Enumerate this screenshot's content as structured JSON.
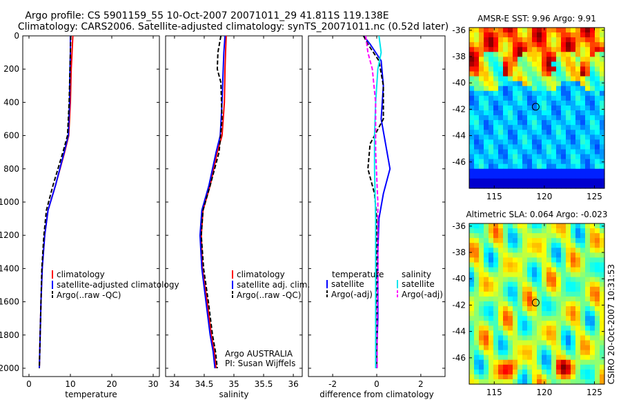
{
  "figure": {
    "title_line1": "Argo profile: CS 5901159_55 10-Oct-2007 20071011_29 41.811S 119.138E",
    "title_line2": "Climatology: CARS2006. Satellite-adjusted climatology: synTS_20071011.nc (0.52d later)",
    "credit": "CSIRO 20-Oct-2007 10:31:53"
  },
  "colors": {
    "climatology": "#ff0000",
    "satellite": "#0000ff",
    "argo": "#000000",
    "sal_satellite": "#00e5ee",
    "sal_argo": "#ff00ff"
  },
  "chart_data": [
    {
      "type": "line",
      "id": "temp",
      "xlabel": "temperature",
      "xlim": [
        -1.5,
        31.5
      ],
      "xticks": [
        0,
        10,
        20,
        30
      ],
      "xtick_labels": [
        "0",
        "10",
        "20",
        "30"
      ],
      "ylim": [
        0,
        2050
      ],
      "yticks": [
        0,
        200,
        400,
        600,
        800,
        1000,
        1200,
        1400,
        1600,
        1800,
        2000
      ],
      "ytick_labels": [
        "0",
        "200",
        "400",
        "600",
        "800",
        "1000",
        "1200",
        "1400",
        "1600",
        "1800",
        "2000"
      ],
      "y_reversed": true,
      "series": [
        {
          "name": "climatology",
          "color": "#ff0000",
          "dash": "solid",
          "x": [
            10.6,
            10.4,
            10.2,
            10,
            9.6,
            8.6,
            6.4,
            4.6,
            3.8,
            3.2,
            2.9,
            2.7,
            2.6,
            2.5
          ],
          "y": [
            0,
            100,
            200,
            400,
            600,
            700,
            900,
            1050,
            1200,
            1400,
            1600,
            1800,
            1900,
            2000
          ]
        },
        {
          "name": "satellite-adjusted climatology",
          "color": "#0000ff",
          "dash": "solid",
          "x": [
            10.0,
            10.0,
            9.9,
            9.8,
            9.5,
            8.5,
            6.4,
            4.6,
            3.8,
            3.2,
            2.9,
            2.7,
            2.6,
            2.5
          ],
          "y": [
            0,
            100,
            200,
            400,
            600,
            700,
            900,
            1050,
            1200,
            1400,
            1600,
            1800,
            1900,
            2000
          ]
        },
        {
          "name": "Argo(..raw -QC)",
          "color": "#000000",
          "dash": "dash",
          "x": [
            10.1,
            10.0,
            9.9,
            9.7,
            9.3,
            8.2,
            5.8,
            4.2,
            3.6,
            3.1,
            2.9,
            2.7,
            2.6,
            2.5
          ],
          "y": [
            0,
            100,
            200,
            400,
            600,
            700,
            900,
            1050,
            1200,
            1400,
            1600,
            1800,
            1900,
            2000
          ]
        }
      ],
      "legend": {
        "position": "lower-right",
        "entries": [
          "climatology",
          "satellite-adjusted climatology",
          "Argo(..raw -QC)"
        ]
      }
    },
    {
      "type": "line",
      "id": "sal",
      "xlabel": "salinity",
      "xlim": [
        33.85,
        36.15
      ],
      "xticks": [
        34,
        34.5,
        35,
        35.5,
        36
      ],
      "xtick_labels": [
        "34",
        "34.5",
        "35",
        "35.5",
        "36"
      ],
      "ylim": [
        0,
        2050
      ],
      "yticks": [
        0,
        200,
        400,
        600,
        800,
        1000,
        1200,
        1400,
        1600,
        1800,
        2000
      ],
      "y_reversed": true,
      "series": [
        {
          "name": "climatology",
          "color": "#ff0000",
          "dash": "solid",
          "x": [
            34.87,
            34.86,
            34.85,
            34.84,
            34.8,
            34.72,
            34.6,
            34.48,
            34.45,
            34.47,
            34.55,
            34.62,
            34.67,
            34.7
          ],
          "y": [
            0,
            100,
            200,
            400,
            600,
            700,
            900,
            1050,
            1200,
            1400,
            1600,
            1800,
            1900,
            2000
          ]
        },
        {
          "name": "satellite adj. clim.",
          "color": "#0000ff",
          "dash": "solid",
          "x": [
            34.85,
            34.83,
            34.82,
            34.8,
            34.77,
            34.7,
            34.58,
            34.46,
            34.43,
            34.46,
            34.53,
            34.6,
            34.65,
            34.68
          ],
          "y": [
            0,
            100,
            200,
            400,
            600,
            700,
            900,
            1050,
            1200,
            1400,
            1600,
            1800,
            1900,
            2000
          ]
        },
        {
          "name": "Argo(..raw -QC)",
          "color": "#000000",
          "dash": "dash",
          "x": [
            34.78,
            34.73,
            34.72,
            34.78,
            34.8,
            34.75,
            34.6,
            34.48,
            34.45,
            34.49,
            34.57,
            34.64,
            34.69,
            34.72
          ],
          "y": [
            0,
            100,
            200,
            280,
            500,
            700,
            900,
            1050,
            1200,
            1400,
            1600,
            1800,
            1900,
            2000
          ]
        }
      ],
      "legend": {
        "position": "lower-right",
        "entries": [
          "climatology",
          "satellite adj. clim.",
          "Argo(..raw -QC)"
        ]
      },
      "annotation": {
        "line1": "Argo AUSTRALIA",
        "line2": "PI: Susan Wijffels"
      }
    },
    {
      "type": "line",
      "id": "diff",
      "xlabel": "difference from climatology",
      "xlim": [
        -3.1,
        3.1
      ],
      "xticks": [
        -2,
        0,
        2
      ],
      "xtick_labels": [
        "-2",
        "0",
        "2"
      ],
      "ylim": [
        0,
        2050
      ],
      "yticks": [
        0,
        200,
        400,
        600,
        800,
        1000,
        1200,
        1400,
        1600,
        1800,
        2000
      ],
      "y_reversed": true,
      "series": [
        {
          "name": "temperature satellite",
          "color": "#0000ff",
          "dash": "solid",
          "x": [
            -0.6,
            -0.3,
            0.2,
            0.3,
            0.2,
            0.4,
            0.6,
            0.3,
            0.1,
            0.05,
            0.05,
            0.05,
            0.0,
            0.0
          ],
          "y": [
            0,
            50,
            150,
            300,
            500,
            650,
            800,
            950,
            1100,
            1300,
            1500,
            1700,
            1900,
            2000
          ]
        },
        {
          "name": "temperature Argo(-adj)",
          "color": "#000000",
          "dash": "dash",
          "x": [
            -0.6,
            -0.4,
            0.1,
            0.3,
            0.3,
            -0.3,
            -0.4,
            -0.1,
            0.0,
            0.0,
            0.0,
            0.0,
            0.0
          ],
          "y": [
            0,
            50,
            150,
            300,
            500,
            650,
            800,
            950,
            1100,
            1300,
            1500,
            1800,
            2000
          ]
        },
        {
          "name": "salinity satellite",
          "color": "#00e5ee",
          "dash": "solid",
          "x": [
            0.1,
            0.2,
            0.05,
            -0.05,
            -0.1,
            -0.1,
            -0.05,
            -0.05,
            -0.05,
            -0.05
          ],
          "y": [
            0,
            100,
            200,
            400,
            600,
            800,
            1100,
            1400,
            1700,
            2000
          ]
        },
        {
          "name": "salinity Argo(-adj)",
          "color": "#ff00ff",
          "dash": "dash",
          "x": [
            -0.5,
            -0.4,
            -0.2,
            -0.05,
            -0.05,
            0.05,
            0.05,
            0.02,
            0.02
          ],
          "y": [
            0,
            100,
            200,
            400,
            700,
            1000,
            1400,
            1700,
            2000
          ]
        }
      ],
      "legend": {
        "position": "lower-center",
        "columns": [
          "temperature",
          "salinity"
        ],
        "entries": [
          "satellite",
          "Argo(-adj)",
          "satellite",
          "Argo(-adj)"
        ]
      }
    },
    {
      "type": "heatmap",
      "id": "sst",
      "title": "AMSR-E SST: 9.96  Argo: 9.91",
      "xlim": [
        112.5,
        126
      ],
      "ylim": [
        -48,
        -35.8
      ],
      "xticks": [
        115,
        120,
        125
      ],
      "xtick_labels": [
        "115",
        "120",
        "125"
      ],
      "yticks": [
        -36,
        -38,
        -40,
        -42,
        -44,
        -46
      ],
      "ytick_labels": [
        "-36",
        "-38",
        "-40",
        "-42",
        "-44",
        "-46"
      ],
      "marker": {
        "lon": 119.138,
        "lat": -41.811
      }
    },
    {
      "type": "heatmap",
      "id": "sla",
      "title": "Altimetric SLA: 0.064  Argo: -0.023",
      "xlim": [
        112.5,
        126
      ],
      "ylim": [
        -48,
        -35.8
      ],
      "xticks": [
        115,
        120,
        125
      ],
      "xtick_labels": [
        "115",
        "120",
        "125"
      ],
      "yticks": [
        -36,
        -38,
        -40,
        -42,
        -44,
        -46
      ],
      "ytick_labels": [
        "-36",
        "-38",
        "-40",
        "-42",
        "-44",
        "-46"
      ],
      "marker": {
        "lon": 119.138,
        "lat": -41.811
      }
    }
  ]
}
